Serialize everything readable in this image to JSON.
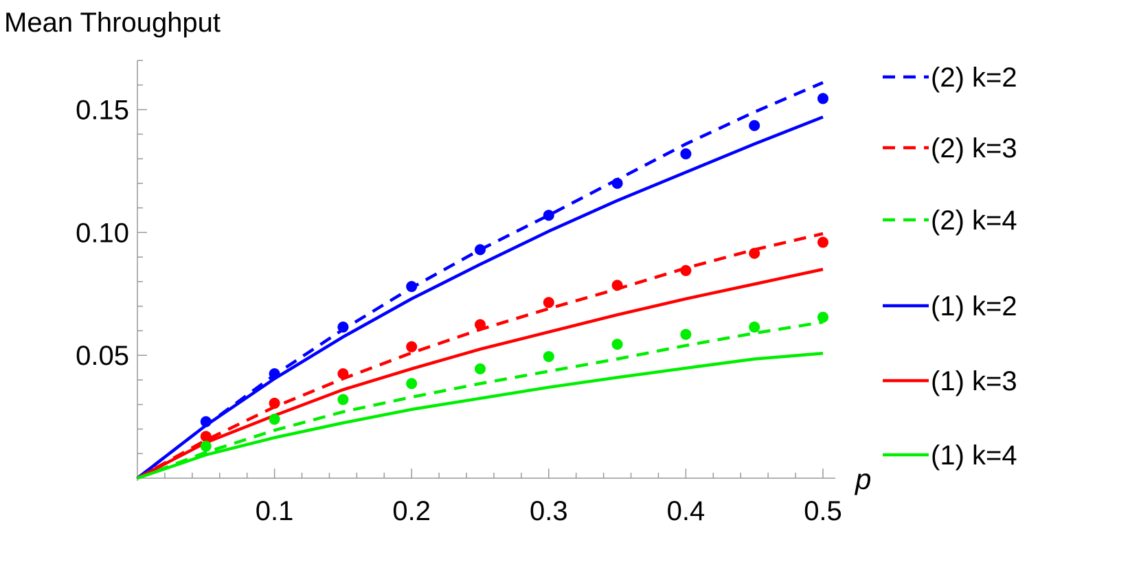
{
  "chart_data": {
    "type": "line",
    "ylabel": "Mean Throughput",
    "xlabel": "p",
    "xlim": [
      0,
      0.5
    ],
    "ylim": [
      0,
      0.17
    ],
    "x_ticks": [
      "0.1",
      "0.2",
      "0.3",
      "0.4",
      "0.5"
    ],
    "y_ticks": [
      "0.05",
      "0.10",
      "0.15"
    ],
    "grid": false,
    "legend_position": "right",
    "series": [
      {
        "name": "(2) k=2",
        "style": "dashed",
        "color": "#0000ff",
        "x": [
          0,
          0.05,
          0.1,
          0.15,
          0.2,
          0.25,
          0.3,
          0.35,
          0.4,
          0.45,
          0.5
        ],
        "y": [
          0,
          0.0215,
          0.042,
          0.0605,
          0.0775,
          0.093,
          0.107,
          0.1215,
          0.136,
          0.149,
          0.161
        ]
      },
      {
        "name": "(2) k=3",
        "style": "dashed",
        "color": "#ff0000",
        "x": [
          0,
          0.05,
          0.1,
          0.15,
          0.2,
          0.25,
          0.3,
          0.35,
          0.4,
          0.45,
          0.5
        ],
        "y": [
          0,
          0.0155,
          0.029,
          0.0405,
          0.051,
          0.0605,
          0.069,
          0.077,
          0.0855,
          0.093,
          0.0995
        ]
      },
      {
        "name": "(2) k=4",
        "style": "dashed",
        "color": "#00ee00",
        "x": [
          0,
          0.05,
          0.1,
          0.15,
          0.2,
          0.25,
          0.3,
          0.35,
          0.4,
          0.45,
          0.5
        ],
        "y": [
          0,
          0.0105,
          0.0195,
          0.027,
          0.033,
          0.0385,
          0.0435,
          0.0485,
          0.054,
          0.059,
          0.0635
        ]
      },
      {
        "name": "(1) k=2",
        "style": "solid",
        "color": "#0000ff",
        "x": [
          0,
          0.05,
          0.1,
          0.15,
          0.2,
          0.25,
          0.3,
          0.35,
          0.4,
          0.45,
          0.5
        ],
        "y": [
          0,
          0.0215,
          0.0405,
          0.0575,
          0.073,
          0.087,
          0.1005,
          0.113,
          0.1245,
          0.136,
          0.147
        ]
      },
      {
        "name": "(1) k=3",
        "style": "solid",
        "color": "#ff0000",
        "x": [
          0,
          0.05,
          0.1,
          0.15,
          0.2,
          0.25,
          0.3,
          0.35,
          0.4,
          0.45,
          0.5
        ],
        "y": [
          0,
          0.0145,
          0.0255,
          0.036,
          0.0445,
          0.0525,
          0.0595,
          0.0665,
          0.073,
          0.079,
          0.085
        ]
      },
      {
        "name": "(1) k=4",
        "style": "solid",
        "color": "#00ee00",
        "x": [
          0,
          0.05,
          0.1,
          0.15,
          0.2,
          0.25,
          0.3,
          0.35,
          0.4,
          0.45,
          0.5
        ],
        "y": [
          0,
          0.0095,
          0.0165,
          0.0225,
          0.028,
          0.0325,
          0.037,
          0.041,
          0.0448,
          0.0485,
          0.0508
        ]
      }
    ],
    "points": [
      {
        "color": "#0000ff",
        "x": [
          0.05,
          0.1,
          0.15,
          0.2,
          0.25,
          0.3,
          0.35,
          0.4,
          0.45,
          0.5
        ],
        "y": [
          0.023,
          0.0425,
          0.0615,
          0.078,
          0.093,
          0.107,
          0.12,
          0.132,
          0.1435,
          0.1545
        ]
      },
      {
        "color": "#ff0000",
        "x": [
          0.05,
          0.1,
          0.15,
          0.2,
          0.25,
          0.3,
          0.35,
          0.4,
          0.45,
          0.5
        ],
        "y": [
          0.017,
          0.0305,
          0.0425,
          0.0535,
          0.0625,
          0.0715,
          0.0785,
          0.0845,
          0.0915,
          0.096
        ]
      },
      {
        "color": "#00ee00",
        "x": [
          0.05,
          0.1,
          0.15,
          0.2,
          0.25,
          0.3,
          0.35,
          0.4,
          0.45,
          0.5
        ],
        "y": [
          0.013,
          0.024,
          0.032,
          0.0385,
          0.0445,
          0.0495,
          0.0545,
          0.0585,
          0.0615,
          0.0655
        ]
      }
    ]
  }
}
